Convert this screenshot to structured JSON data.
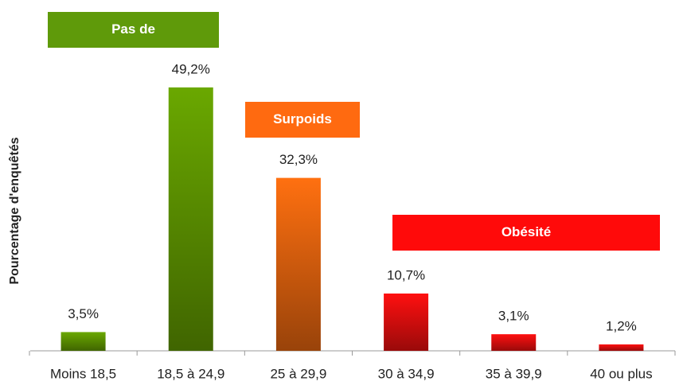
{
  "chart_data": {
    "type": "bar",
    "y_axis_label": "Pourcentage d'enquêtés",
    "categories": [
      "Moins 18,5",
      "18,5 à 24,9",
      "25 à 29,9",
      "30 à 34,9",
      "35 à 39,9",
      "40 ou plus"
    ],
    "values": [
      3.5,
      49.2,
      32.3,
      10.7,
      3.1,
      1.2
    ],
    "value_labels": [
      "3,5%",
      "49,2%",
      "32,3%",
      "10,7%",
      "3,1%",
      "1,2%"
    ],
    "colors": [
      "#6aa800",
      "#6aa800",
      "#ff7010",
      "#ff1010",
      "#ff1010",
      "#ff1010"
    ],
    "annotations": [
      {
        "text": "Pas de",
        "color": "#5f9a0a"
      },
      {
        "text": "Surpoids",
        "color": "#ff6a10"
      },
      {
        "text": "Obésité",
        "color": "#ff0a0a"
      }
    ]
  }
}
